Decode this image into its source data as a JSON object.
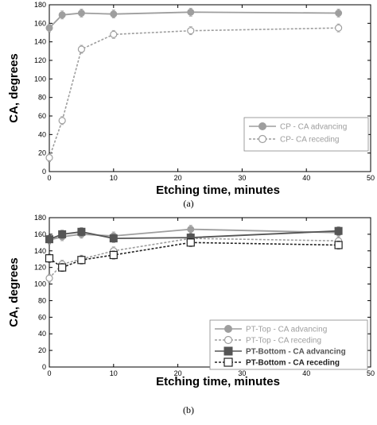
{
  "chart_data": [
    {
      "type": "line",
      "caption": "(a)",
      "xlabel": "Etching time, minutes",
      "ylabel": "CA, degrees",
      "xlim": [
        0,
        50
      ],
      "ylim": [
        0,
        180
      ],
      "xticks": [
        0,
        10,
        20,
        30,
        40,
        50
      ],
      "yticks": [
        0,
        20,
        40,
        60,
        80,
        100,
        120,
        140,
        160,
        180
      ],
      "grid": false,
      "legend_position": "bottom-right",
      "series": [
        {
          "name": "CP - CA advancing",
          "color": "#9e9e9e",
          "line": "solid",
          "marker": "filled-circle",
          "points": [
            [
              0,
              155
            ],
            [
              2,
              169
            ],
            [
              5,
              171
            ],
            [
              10,
              170
            ],
            [
              22,
              172
            ],
            [
              45,
              171
            ]
          ]
        },
        {
          "name": "CP- CA receding",
          "color": "#9e9e9e",
          "line": "dashed",
          "marker": "open-circle",
          "points": [
            [
              0,
              15
            ],
            [
              2,
              55
            ],
            [
              5,
              132
            ],
            [
              10,
              148
            ],
            [
              22,
              152
            ],
            [
              45,
              155
            ]
          ]
        }
      ]
    },
    {
      "type": "line",
      "caption": "(b)",
      "xlabel": "Etching time, minutes",
      "ylabel": "CA, degrees",
      "xlim": [
        0,
        50
      ],
      "ylim": [
        0,
        180
      ],
      "xticks": [
        0,
        10,
        20,
        30,
        40,
        50
      ],
      "yticks": [
        0,
        20,
        40,
        60,
        80,
        100,
        120,
        140,
        160,
        180
      ],
      "grid": false,
      "legend_position": "bottom-right",
      "series": [
        {
          "name": "PT-Top - CA advancing",
          "color": "#9e9e9e",
          "line": "solid",
          "marker": "filled-circle",
          "points": [
            [
              0,
              153
            ],
            [
              2,
              157
            ],
            [
              5,
              160
            ],
            [
              10,
              158
            ],
            [
              22,
              166
            ],
            [
              45,
              162
            ]
          ]
        },
        {
          "name": "PT-Top - CA receding",
          "color": "#9e9e9e",
          "line": "dashed",
          "marker": "open-circle",
          "points": [
            [
              0,
              107
            ],
            [
              2,
              124
            ],
            [
              5,
              130
            ],
            [
              10,
              140
            ],
            [
              22,
              155
            ],
            [
              45,
              152
            ]
          ]
        },
        {
          "name": "PT-Bottom - CA advancing",
          "color": "#555555",
          "line": "solid",
          "marker": "filled-square",
          "points": [
            [
              0,
              154
            ],
            [
              2,
              160
            ],
            [
              5,
              163
            ],
            [
              10,
              155
            ],
            [
              22,
              156
            ],
            [
              45,
              164
            ]
          ]
        },
        {
          "name": "PT-Bottom - CA receding",
          "color": "#222222",
          "line": "dashed",
          "marker": "open-square",
          "points": [
            [
              0,
              131
            ],
            [
              2,
              120
            ],
            [
              5,
              129
            ],
            [
              10,
              135
            ],
            [
              22,
              150
            ],
            [
              45,
              147
            ]
          ]
        }
      ]
    }
  ]
}
